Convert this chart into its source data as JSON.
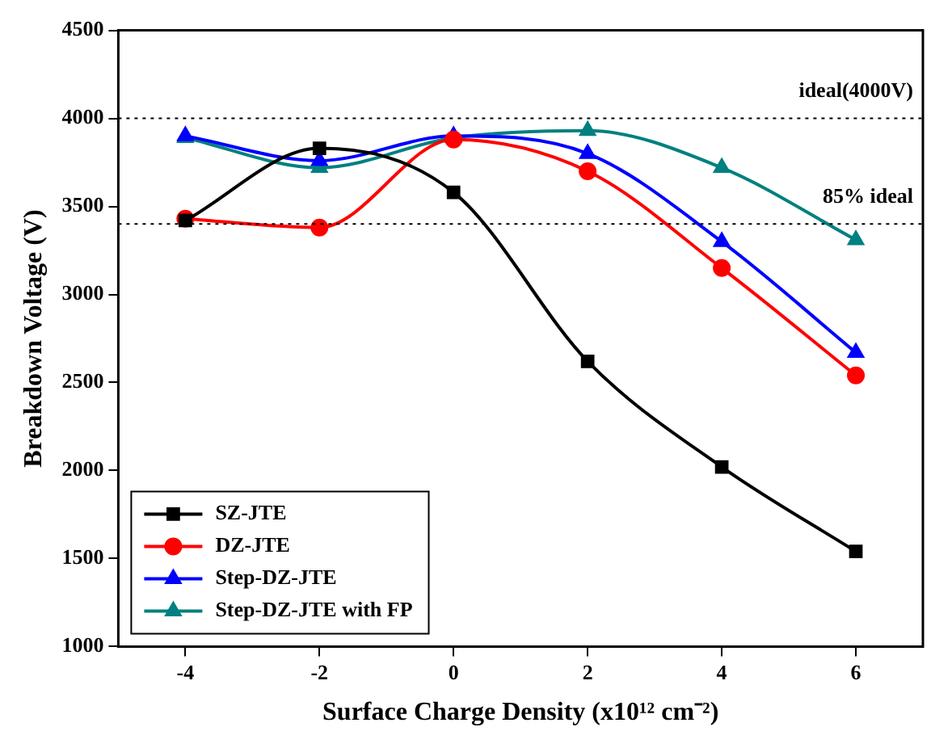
{
  "chart_data": {
    "type": "line",
    "xlabel": "Surface Charge Density (x10¹² cm⁻²)",
    "ylabel": "Breakdown Voltage (V)",
    "x": [
      -4,
      -2,
      0,
      2,
      4,
      6
    ],
    "series": [
      {
        "name": "SZ-JTE",
        "color": "#000000",
        "marker": "square",
        "values": [
          3420,
          3830,
          3580,
          2620,
          2020,
          1540
        ]
      },
      {
        "name": "DZ-JTE",
        "color": "#ff0000",
        "marker": "circle",
        "values": [
          3430,
          3380,
          3880,
          3700,
          3150,
          2540
        ]
      },
      {
        "name": "Step-DZ-JTE",
        "color": "#0000ff",
        "marker": "triangle",
        "values": [
          3900,
          3760,
          3900,
          3800,
          3300,
          2670
        ]
      },
      {
        "name": "Step-DZ-JTE with FP",
        "color": "#008080",
        "marker": "triangle",
        "values": [
          3890,
          3720,
          3890,
          3930,
          3720,
          3310
        ]
      }
    ],
    "xlim": [
      -5,
      7
    ],
    "xticks": [
      -4,
      -2,
      0,
      2,
      4,
      6
    ],
    "ylim": [
      1000,
      4500
    ],
    "yticks": [
      1000,
      1500,
      2000,
      2500,
      3000,
      3500,
      4000,
      4500
    ],
    "ref_lines": [
      {
        "axis": "y",
        "value": 4000,
        "label": "ideal(4000V)",
        "color": "#000000",
        "line_style": "dotted"
      },
      {
        "axis": "y",
        "value": 3400,
        "label": "85% ideal",
        "color": "#000000",
        "line_style": "dotted"
      }
    ],
    "grid": false,
    "legend": "bottom left",
    "line_style": "solid"
  }
}
